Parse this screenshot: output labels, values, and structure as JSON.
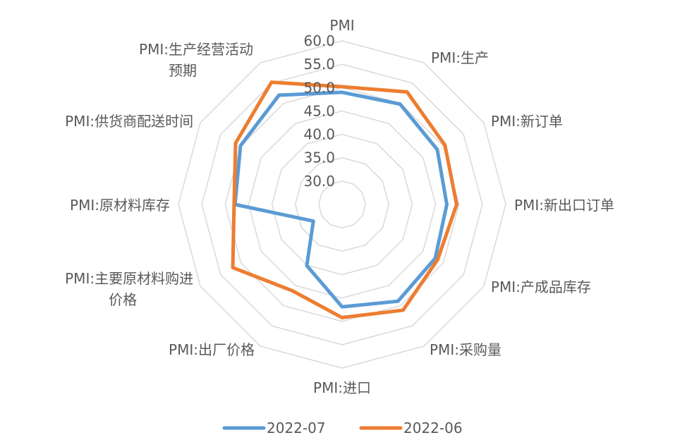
{
  "chart_data": {
    "type": "radar",
    "categories": [
      "PMI",
      "PMI:生产",
      "PMI:新订单",
      "PMI:新出口订单",
      "PMI:产成品库存",
      "PMI:采购量",
      "PMI:进口",
      "PMI:出厂价格",
      "PMI:主要原材料购进价格",
      "PMI:原材料库存",
      "PMI:供货商配送时间",
      "PMI:生产经营活动预期"
    ],
    "radial_ticks": [
      "30.0",
      "35.0",
      "40.0",
      "45.0",
      "50.0",
      "55.0",
      "60.0"
    ],
    "rlim": [
      25,
      60
    ],
    "series": [
      {
        "name": "2022-07",
        "color": "#5B9BD5",
        "values": [
          49.0,
          49.8,
          48.5,
          47.4,
          48.0,
          48.9,
          46.9,
          40.1,
          32.1,
          47.9,
          50.1,
          52.0
        ]
      },
      {
        "name": "2022-06",
        "color": "#ED7D31",
        "values": [
          50.2,
          52.8,
          50.4,
          49.5,
          48.6,
          51.1,
          49.2,
          46.3,
          52.0,
          48.1,
          51.3,
          55.2
        ]
      }
    ],
    "legend_position": "bottom",
    "grid": true
  }
}
